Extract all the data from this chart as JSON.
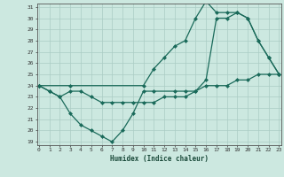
{
  "xlabel": "Humidex (Indice chaleur)",
  "background_color": "#cce8e0",
  "grid_color": "#aaccc4",
  "line_color": "#1a6a5a",
  "ylim_min": 19,
  "ylim_max": 31,
  "xlim_min": 0,
  "xlim_max": 23,
  "yticks": [
    19,
    20,
    21,
    22,
    23,
    24,
    25,
    26,
    27,
    28,
    29,
    30,
    31
  ],
  "xticks": [
    0,
    1,
    2,
    3,
    4,
    5,
    6,
    7,
    8,
    9,
    10,
    11,
    12,
    13,
    14,
    15,
    16,
    17,
    18,
    19,
    20,
    21,
    22,
    23
  ],
  "line1_x": [
    0,
    1,
    2,
    3,
    4,
    5,
    6,
    7,
    8,
    9,
    10,
    11,
    13,
    14,
    15,
    16,
    17,
    18,
    19,
    20,
    21,
    22,
    23
  ],
  "line1_y": [
    24,
    23.5,
    23,
    21.5,
    20.5,
    20,
    19.5,
    19,
    20,
    21.5,
    23.5,
    23.5,
    23.5,
    23.5,
    23.5,
    24.5,
    30,
    30,
    30.5,
    30,
    28,
    26.5,
    25
  ],
  "line2_x": [
    0,
    1,
    2,
    3,
    4,
    5,
    6,
    7,
    8,
    9,
    10,
    11,
    12,
    13,
    14,
    15,
    16,
    17,
    18,
    19,
    20,
    21,
    22,
    23
  ],
  "line2_y": [
    24,
    23.5,
    23,
    23.5,
    23.5,
    23,
    22.5,
    22.5,
    22.5,
    22.5,
    22.5,
    22.5,
    23,
    23,
    23,
    23.5,
    24,
    24,
    24,
    24.5,
    24.5,
    25,
    25,
    25
  ],
  "line3_x": [
    0,
    3,
    10,
    11,
    12,
    13,
    14,
    15,
    16,
    17,
    18,
    19,
    20,
    21,
    22,
    23
  ],
  "line3_y": [
    24,
    24,
    24,
    25.5,
    26.5,
    27.5,
    28,
    30,
    31.5,
    30.5,
    30.5,
    30.5,
    30,
    28,
    26.5,
    25
  ]
}
